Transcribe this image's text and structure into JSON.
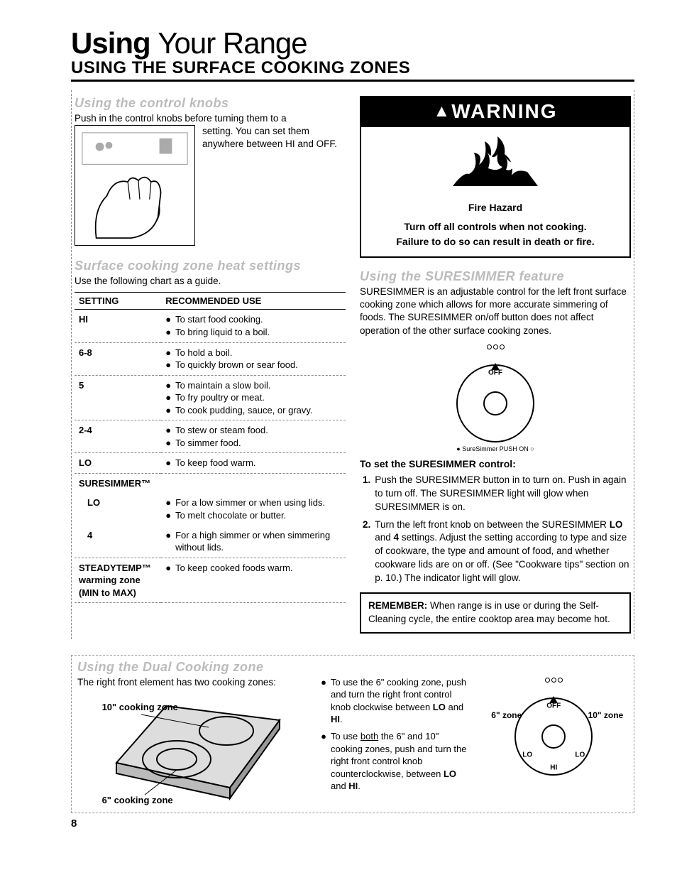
{
  "title1": "Using",
  "title2": "Your Range",
  "subtitle": "USING THE SURFACE COOKING ZONES",
  "knobs": {
    "heading": "Using the control knobs",
    "intro1": "Push in the control knobs before turning them to a",
    "intro2": "setting. You can set them anywhere between HI and OFF."
  },
  "heatSettings": {
    "heading": "Surface cooking zone heat settings",
    "intro": "Use the following chart as a guide.",
    "col1": "SETTING",
    "col2": "RECOMMENDED USE",
    "rows": [
      {
        "setting": "HI",
        "uses": [
          "To start food cooking.",
          "To bring liquid to a boil."
        ]
      },
      {
        "setting": "6-8",
        "uses": [
          "To hold a boil.",
          "To quickly brown or sear food."
        ]
      },
      {
        "setting": "5",
        "uses": [
          "To maintain a slow boil.",
          "To fry poultry or meat.",
          "To cook pudding, sauce, or gravy."
        ]
      },
      {
        "setting": "2-4",
        "uses": [
          "To stew or steam food.",
          "To simmer food."
        ]
      },
      {
        "setting": "LO",
        "uses": [
          "To keep food warm."
        ]
      }
    ],
    "suresimmerLabel": "SURESIMMER™",
    "suresimmerRows": [
      {
        "setting": "LO",
        "uses": [
          "For a low simmer or when using lids.",
          "To melt chocolate or butter."
        ]
      },
      {
        "setting": "4",
        "uses": [
          "For a high simmer or when simmering without lids."
        ]
      }
    ],
    "steadytemp": {
      "setting": "STEADYTEMP™ warming zone (MIN to MAX)",
      "use": "To keep cooked foods warm."
    }
  },
  "warning": {
    "header": "WARNING",
    "hazard": "Fire Hazard",
    "line1": "Turn off all controls when not cooking.",
    "line2": "Failure to do so can result in death or fire."
  },
  "suresimmer": {
    "heading": "Using the SURESIMMER feature",
    "para": "SURESIMMER is an adjustable control for the left front surface cooking zone which allows for more accurate simmering of foods. The SURESIMMER on/off button does not affect operation of the other surface cooking zones.",
    "setTitle": "To set the SURESIMMER control:",
    "steps": [
      "Push the SURESIMMER button in to turn on. Push in again to turn off. The SURESIMMER light will glow when SURESIMMER is on.",
      "Turn the left front knob on between the SURESIMMER LO and 4 settings. Adjust the setting according to type and size of cookware, the type and amount of food, and whether cookware lids are on or off. (See \"Cookware tips\" section on p. 10.) The indicator light will glow."
    ],
    "knobCaption": "SureSimmer PUSH ON",
    "offLabel": "OFF"
  },
  "remember": {
    "label": "REMEMBER:",
    "text": " When range is in use or during the Self-Cleaning cycle, the entire cooktop area may become hot."
  },
  "dual": {
    "heading": "Using the Dual Cooking zone",
    "intro": "The right front element has two cooking zones:",
    "label10": "10\" cooking zone",
    "label6": "6\" cooking zone",
    "bullets": [
      "To use the 6\" cooking zone, push and turn the right front control knob clockwise between LO and HI.",
      "To use both the 6\" and 10\" cooking zones, push and turn the right front control knob counterclockwise, between LO and HI."
    ],
    "knob6": "6\" zone",
    "knob10": "10\" zone",
    "off": "OFF"
  },
  "pageNum": "8",
  "colors": {
    "text": "#000000",
    "faded": "#bbbbbb",
    "dash": "#888888",
    "bg": "#ffffff"
  }
}
